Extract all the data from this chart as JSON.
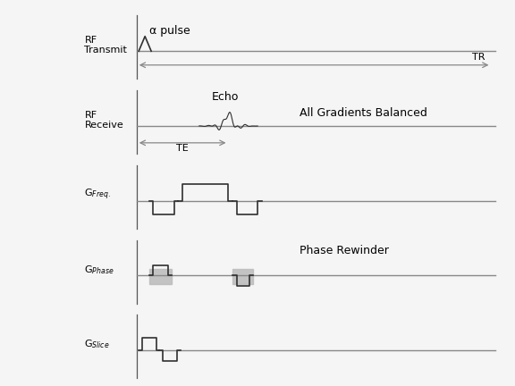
{
  "bg_color": "#ffffff",
  "line_color": "#303030",
  "baseline_color": "#888888",
  "text_color": "#000000",
  "fig_bg": "#f5f5f5",
  "annotations": {
    "TR_label": "TR",
    "TE_label": "TE",
    "alpha_pulse": "α pulse",
    "echo": "Echo",
    "all_grad": "All Gradients Balanced",
    "phase_rewind": "Phase Rewinder"
  },
  "row_labels": [
    "RF\nTransmit",
    "RF\nReceive",
    "G$_{Freq.}$",
    "G$_{Phase}$",
    "G$_{Slice}$"
  ],
  "xmin": 0,
  "xmax": 10,
  "ylim": [
    -1.6,
    2.0
  ],
  "sep_x": 1.3
}
